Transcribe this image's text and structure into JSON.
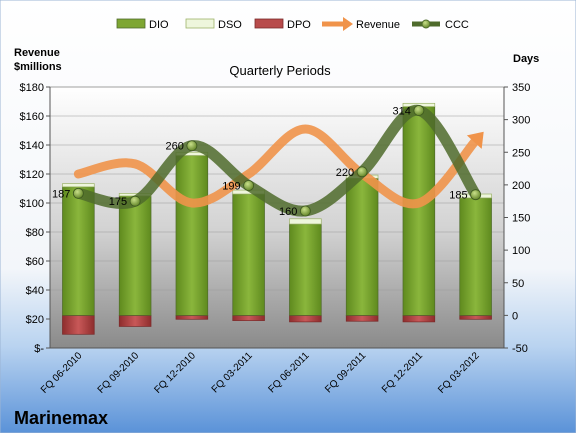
{
  "chart_data": {
    "type": "bar",
    "company": "Marinemax",
    "title": "Quarterly Periods",
    "left_axis_label": [
      "Revenue",
      "$millions"
    ],
    "right_axis_label": "Days",
    "categories": [
      "FQ 06-2010",
      "FQ 09-2010",
      "FQ 12-2010",
      "FQ 03-2011",
      "FQ 06-2011",
      "FQ 09-2011",
      "FQ 12-2011",
      "FQ 03-2012"
    ],
    "left_ylim": [
      0,
      180
    ],
    "left_ticks": [
      "$-",
      "$20",
      "$40",
      "$60",
      "$80",
      "$100",
      "$120",
      "$140",
      "$160",
      "$180"
    ],
    "right_ylim": [
      -50,
      350
    ],
    "right_ticks": [
      "-50",
      "0",
      "50",
      "100",
      "150",
      "200",
      "250",
      "300",
      "350"
    ],
    "legend": [
      "DIO",
      "DSO",
      "DPO",
      "Revenue",
      "CCC"
    ],
    "series": [
      {
        "name": "DIO",
        "axis": "right",
        "values": [
          197,
          183,
          245,
          186,
          140,
          210,
          320,
          180
        ]
      },
      {
        "name": "DSO",
        "axis": "right",
        "values": [
          5,
          4,
          5,
          6,
          8,
          5,
          5,
          6
        ]
      },
      {
        "name": "DPO",
        "axis": "right",
        "values": [
          -29,
          -17,
          -6,
          -8,
          -10,
          -9,
          -10,
          -6
        ]
      },
      {
        "name": "Revenue",
        "axis": "left",
        "values": [
          120,
          127,
          100,
          120,
          151,
          120,
          100,
          143
        ]
      },
      {
        "name": "CCC",
        "axis": "right",
        "values": [
          187,
          175,
          260,
          199,
          160,
          220,
          314,
          185
        ]
      }
    ],
    "ccc_labels": [
      "187",
      "175",
      "260",
      "199",
      "160",
      "220",
      "314",
      "185"
    ],
    "colors": {
      "DIO": "#7ea632",
      "DSO": "#e8f2d0",
      "DPO": "#b84b4b",
      "Revenue": "#f0934a",
      "CCC": "#4f6b2c"
    }
  }
}
